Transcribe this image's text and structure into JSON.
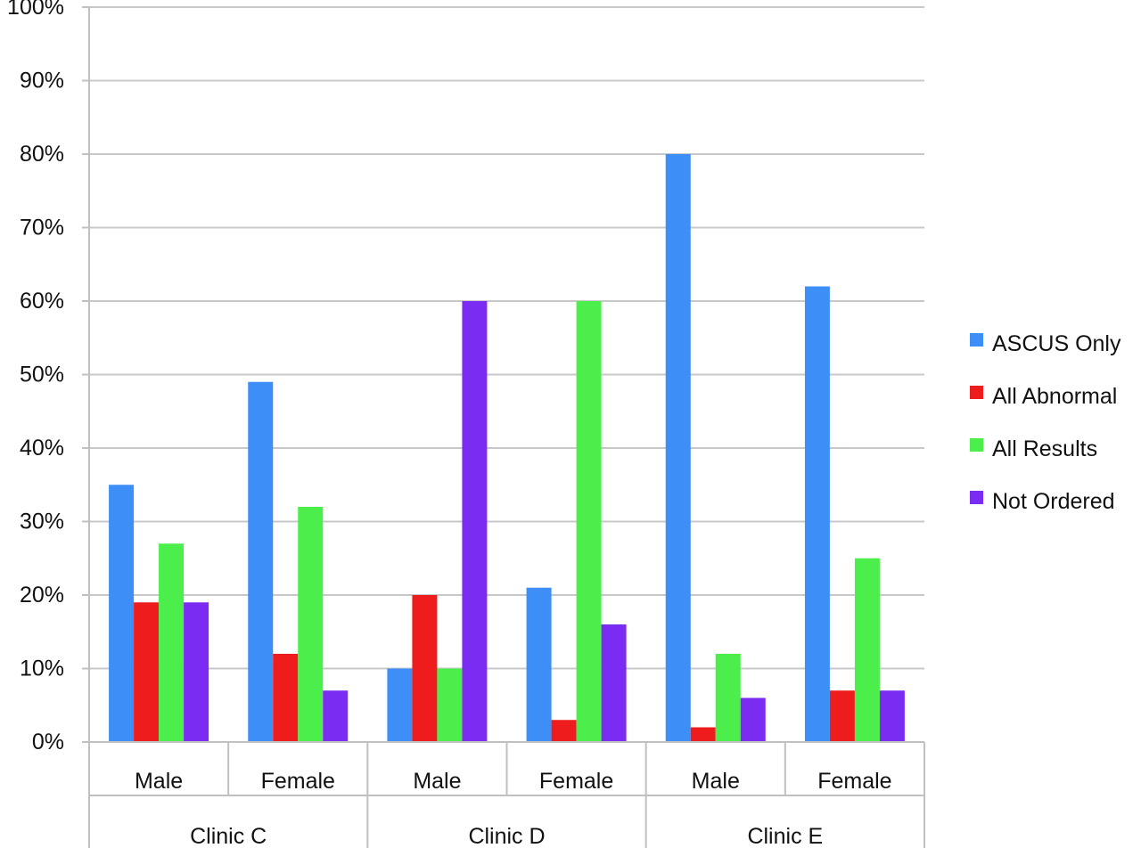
{
  "chart_data": {
    "type": "bar",
    "groups": [
      "Clinic C",
      "Clinic D",
      "Clinic E"
    ],
    "categories": [
      "Male",
      "Female",
      "Male",
      "Female",
      "Male",
      "Female"
    ],
    "series": [
      {
        "name": "ASCUS Only",
        "color": "#3e8ef7",
        "values": [
          35,
          49,
          10,
          21,
          80,
          62
        ]
      },
      {
        "name": "All Abnormal",
        "color": "#ee1c1c",
        "values": [
          19,
          12,
          20,
          3,
          2,
          7
        ]
      },
      {
        "name": "All Results",
        "color": "#4cee4c",
        "values": [
          27,
          32,
          10,
          60,
          12,
          25
        ]
      },
      {
        "name": "Not Ordered",
        "color": "#7b2cf2",
        "values": [
          19,
          7,
          60,
          16,
          6,
          7
        ]
      }
    ],
    "yticks": [
      "0%",
      "10%",
      "20%",
      "30%",
      "40%",
      "50%",
      "60%",
      "70%",
      "80%",
      "90%",
      "100%"
    ],
    "ylim": [
      0,
      100
    ],
    "grid": true,
    "legend_position": "right"
  }
}
